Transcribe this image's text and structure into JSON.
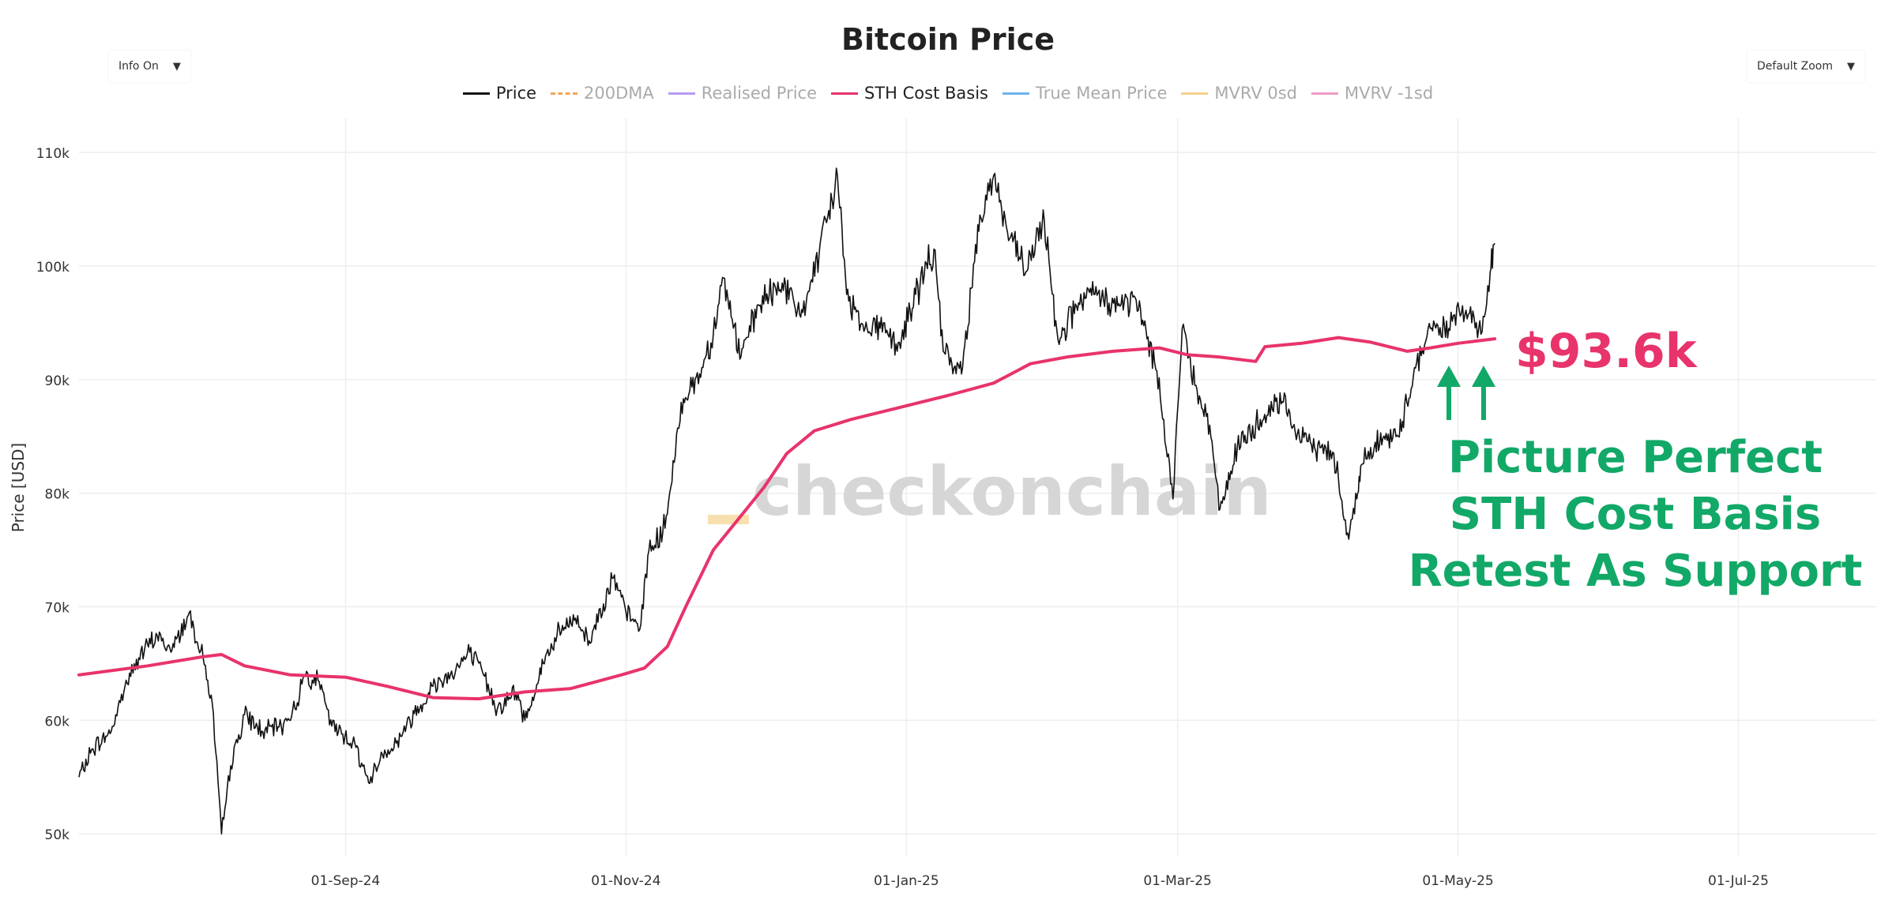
{
  "header": {
    "title": "Bitcoin Price"
  },
  "controls": {
    "info_dropdown": {
      "value": "Info On",
      "caret": "▼"
    },
    "zoom_dropdown": {
      "value": "Default Zoom",
      "caret": "▼"
    }
  },
  "colors": {
    "price": "#111111",
    "sth": "#e8336b",
    "annotation_green": "#12a868",
    "grid": "#eeeeee",
    "watermark": "#d6d6d6",
    "watermark_accent": "#f8dfae"
  },
  "watermark": {
    "text": "checkonchain"
  },
  "chart_data": {
    "type": "line",
    "title": "Bitcoin Price",
    "ylabel": "Price [USD]",
    "xlabel": "",
    "ylim": [
      48000,
      113000
    ],
    "xlim": [
      "2024-07-05",
      "2025-07-31"
    ],
    "yticks": [
      {
        "value": 50000,
        "label": "50k"
      },
      {
        "value": 60000,
        "label": "60k"
      },
      {
        "value": 70000,
        "label": "70k"
      },
      {
        "value": 80000,
        "label": "80k"
      },
      {
        "value": 90000,
        "label": "90k"
      },
      {
        "value": 100000,
        "label": "100k"
      },
      {
        "value": 110000,
        "label": "110k"
      }
    ],
    "xticks": [
      {
        "value": "2024-09-01",
        "label": "01-Sep-24"
      },
      {
        "value": "2024-11-01",
        "label": "01-Nov-24"
      },
      {
        "value": "2025-01-01",
        "label": "01-Jan-25"
      },
      {
        "value": "2025-03-01",
        "label": "01-Mar-25"
      },
      {
        "value": "2025-05-01",
        "label": "01-May-25"
      },
      {
        "value": "2025-07-01",
        "label": "01-Jul-25"
      }
    ],
    "grid": true,
    "legend": {
      "placement": "top-center",
      "entries": [
        {
          "name": "Price",
          "color": "#111111",
          "dashed": false,
          "active": true
        },
        {
          "name": "200DMA",
          "color": "#f5a65b",
          "dashed": true,
          "active": false
        },
        {
          "name": "Realised Price",
          "color": "#b79cf0",
          "dashed": false,
          "active": false
        },
        {
          "name": "STH Cost Basis",
          "color": "#e8336b",
          "dashed": false,
          "active": true
        },
        {
          "name": "True Mean Price",
          "color": "#6fb3ec",
          "dashed": false,
          "active": false
        },
        {
          "name": "MVRV 0sd",
          "color": "#f5d08a",
          "dashed": false,
          "active": false
        },
        {
          "name": "MVRV -1sd",
          "color": "#ee9cc6",
          "dashed": false,
          "active": false
        }
      ]
    },
    "series": [
      {
        "name": "Price",
        "color": "#111111",
        "points": [
          [
            "2024-07-05",
            55000
          ],
          [
            "2024-07-08",
            57500
          ],
          [
            "2024-07-12",
            59000
          ],
          [
            "2024-07-15",
            63000
          ],
          [
            "2024-07-18",
            65500
          ],
          [
            "2024-07-22",
            67500
          ],
          [
            "2024-07-25",
            66000
          ],
          [
            "2024-07-29",
            69500
          ],
          [
            "2024-08-01",
            65500
          ],
          [
            "2024-08-03",
            61500
          ],
          [
            "2024-08-05",
            50000
          ],
          [
            "2024-08-07",
            56000
          ],
          [
            "2024-08-10",
            60500
          ],
          [
            "2024-08-14",
            59000
          ],
          [
            "2024-08-18",
            59500
          ],
          [
            "2024-08-21",
            61000
          ],
          [
            "2024-08-23",
            64000
          ],
          [
            "2024-08-26",
            63500
          ],
          [
            "2024-08-29",
            59500
          ],
          [
            "2024-09-03",
            58000
          ],
          [
            "2024-09-06",
            54500
          ],
          [
            "2024-09-09",
            57000
          ],
          [
            "2024-09-12",
            58000
          ],
          [
            "2024-09-15",
            60000
          ],
          [
            "2024-09-20",
            63000
          ],
          [
            "2024-09-25",
            64500
          ],
          [
            "2024-09-28",
            66000
          ],
          [
            "2024-10-01",
            64000
          ],
          [
            "2024-10-04",
            61000
          ],
          [
            "2024-10-08",
            62500
          ],
          [
            "2024-10-10",
            60000
          ],
          [
            "2024-10-14",
            65000
          ],
          [
            "2024-10-17",
            67500
          ],
          [
            "2024-10-21",
            69000
          ],
          [
            "2024-10-24",
            67000
          ],
          [
            "2024-10-29",
            72500
          ],
          [
            "2024-11-01",
            69500
          ],
          [
            "2024-11-04",
            68000
          ],
          [
            "2024-11-06",
            75000
          ],
          [
            "2024-11-09",
            76500
          ],
          [
            "2024-11-11",
            81000
          ],
          [
            "2024-11-13",
            88000
          ],
          [
            "2024-11-17",
            90500
          ],
          [
            "2024-11-20",
            94000
          ],
          [
            "2024-11-22",
            99000
          ],
          [
            "2024-11-26",
            92000
          ],
          [
            "2024-11-30",
            96500
          ],
          [
            "2024-12-05",
            98500
          ],
          [
            "2024-12-09",
            95500
          ],
          [
            "2024-12-13",
            101000
          ],
          [
            "2024-12-17",
            108000
          ],
          [
            "2024-12-19",
            97500
          ],
          [
            "2024-12-23",
            94500
          ],
          [
            "2024-12-27",
            95000
          ],
          [
            "2024-12-30",
            92500
          ],
          [
            "2025-01-03",
            97500
          ],
          [
            "2025-01-07",
            101500
          ],
          [
            "2025-01-09",
            92500
          ],
          [
            "2025-01-13",
            90500
          ],
          [
            "2025-01-17",
            104500
          ],
          [
            "2025-01-20",
            108000
          ],
          [
            "2025-01-23",
            103000
          ],
          [
            "2025-01-27",
            99500
          ],
          [
            "2025-01-31",
            104000
          ],
          [
            "2025-02-03",
            93500
          ],
          [
            "2025-02-07",
            96500
          ],
          [
            "2025-02-11",
            97500
          ],
          [
            "2025-02-16",
            96500
          ],
          [
            "2025-02-20",
            97000
          ],
          [
            "2025-02-24",
            91500
          ],
          [
            "2025-02-26",
            86500
          ],
          [
            "2025-02-28",
            79500
          ],
          [
            "2025-03-02",
            94500
          ],
          [
            "2025-03-05",
            89500
          ],
          [
            "2025-03-08",
            86000
          ],
          [
            "2025-03-10",
            78500
          ],
          [
            "2025-03-14",
            84000
          ],
          [
            "2025-03-19",
            86500
          ],
          [
            "2025-03-24",
            88000
          ],
          [
            "2025-03-28",
            84500
          ],
          [
            "2025-04-01",
            84000
          ],
          [
            "2025-04-04",
            83500
          ],
          [
            "2025-04-07",
            76500
          ],
          [
            "2025-04-09",
            79500
          ],
          [
            "2025-04-10",
            82500
          ],
          [
            "2025-04-13",
            84500
          ],
          [
            "2025-04-18",
            85000
          ],
          [
            "2025-04-22",
            91500
          ],
          [
            "2025-04-25",
            94500
          ],
          [
            "2025-04-29",
            94500
          ],
          [
            "2025-05-02",
            96500
          ],
          [
            "2025-05-04",
            95000
          ],
          [
            "2025-05-06",
            94000
          ],
          [
            "2025-05-08",
            99500
          ],
          [
            "2025-05-09",
            102000
          ]
        ]
      },
      {
        "name": "STH Cost Basis",
        "color": "#e8336b",
        "points": [
          [
            "2024-07-05",
            64000
          ],
          [
            "2024-07-20",
            64800
          ],
          [
            "2024-08-01",
            65600
          ],
          [
            "2024-08-05",
            65800
          ],
          [
            "2024-08-10",
            64800
          ],
          [
            "2024-08-20",
            64000
          ],
          [
            "2024-09-01",
            63800
          ],
          [
            "2024-09-10",
            63000
          ],
          [
            "2024-09-20",
            62000
          ],
          [
            "2024-09-30",
            61900
          ],
          [
            "2024-10-10",
            62500
          ],
          [
            "2024-10-20",
            62800
          ],
          [
            "2024-10-31",
            64000
          ],
          [
            "2024-11-05",
            64600
          ],
          [
            "2024-11-10",
            66500
          ],
          [
            "2024-11-14",
            70000
          ],
          [
            "2024-11-20",
            75000
          ],
          [
            "2024-11-25",
            77500
          ],
          [
            "2024-12-01",
            80500
          ],
          [
            "2024-12-06",
            83500
          ],
          [
            "2024-12-12",
            85500
          ],
          [
            "2024-12-20",
            86500
          ],
          [
            "2024-12-31",
            87600
          ],
          [
            "2025-01-10",
            88600
          ],
          [
            "2025-01-20",
            89700
          ],
          [
            "2025-01-28",
            91400
          ],
          [
            "2025-02-05",
            92000
          ],
          [
            "2025-02-15",
            92500
          ],
          [
            "2025-02-25",
            92800
          ],
          [
            "2025-03-03",
            92200
          ],
          [
            "2025-03-10",
            92000
          ],
          [
            "2025-03-18",
            91600
          ],
          [
            "2025-03-20",
            92900
          ],
          [
            "2025-03-28",
            93200
          ],
          [
            "2025-04-05",
            93700
          ],
          [
            "2025-04-12",
            93300
          ],
          [
            "2025-04-20",
            92500
          ],
          [
            "2025-04-25",
            92800
          ],
          [
            "2025-05-01",
            93200
          ],
          [
            "2025-05-09",
            93600
          ]
        ]
      }
    ],
    "annotations": {
      "value_label": "$93.6k",
      "caption_lines": [
        "Picture Perfect",
        "STH Cost Basis",
        "Retest As Support"
      ]
    }
  }
}
